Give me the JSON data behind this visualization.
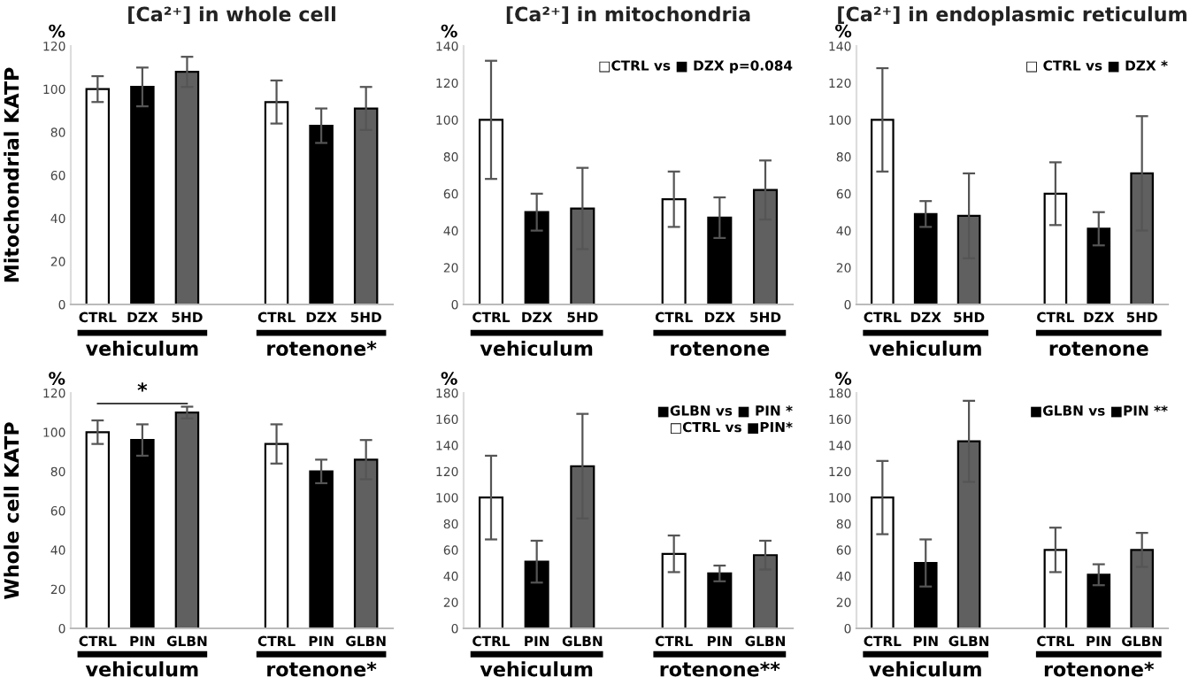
{
  "chart_data": [
    {
      "type": "bar",
      "title": "[Ca²⁺] in whole cell",
      "ylabel": "Mitochondrial KATP",
      "categories": [
        "CTRL",
        "DZX",
        "5HD",
        null,
        "CTRL",
        "DZX",
        "5HD"
      ],
      "values": [
        100,
        101,
        108,
        null,
        94,
        83,
        91
      ],
      "errors": [
        6,
        9,
        7,
        null,
        10,
        8,
        10
      ],
      "colors": [
        "#ffffff",
        "#000000",
        "#606060",
        null,
        "#ffffff",
        "#000000",
        "#606060"
      ],
      "ylim": [
        0,
        120
      ],
      "yticks": [
        0,
        20,
        40,
        60,
        80,
        100,
        120
      ],
      "annotations": [
        "%",
        "vehiculum",
        "rotenone*"
      ]
    },
    {
      "type": "bar",
      "title": "[Ca²⁺] in mitochondria",
      "categories": [
        "CTRL",
        "DZX",
        "5HD",
        null,
        "CTRL",
        "DZX",
        "5HD"
      ],
      "values": [
        100,
        50,
        52,
        null,
        57,
        47,
        62
      ],
      "errors": [
        32,
        10,
        22,
        null,
        15,
        11,
        16
      ],
      "colors": [
        "#ffffff",
        "#000000",
        "#606060",
        null,
        "#ffffff",
        "#000000",
        "#606060"
      ],
      "ylim": [
        0,
        140
      ],
      "yticks": [
        0,
        20,
        40,
        60,
        80,
        100,
        120,
        140
      ],
      "annotations": [
        "%",
        "vehiculum",
        "rotenone",
        "□CTRL vs ■ DZX p=0.084"
      ]
    },
    {
      "type": "bar",
      "title": "[Ca²⁺] in endoplasmic reticulum",
      "categories": [
        "CTRL",
        "DZX",
        "5HD",
        null,
        "CTRL",
        "DZX",
        "5HD"
      ],
      "values": [
        100,
        49,
        48,
        null,
        60,
        41,
        71
      ],
      "errors": [
        28,
        7,
        23,
        null,
        17,
        9,
        31
      ],
      "colors": [
        "#ffffff",
        "#000000",
        "#606060",
        null,
        "#ffffff",
        "#000000",
        "#606060"
      ],
      "ylim": [
        0,
        140
      ],
      "yticks": [
        0,
        20,
        40,
        60,
        80,
        100,
        120,
        140
      ],
      "annotations": [
        "%",
        "vehiculum",
        "rotenone",
        "□ CTRL vs ■ DZX *"
      ]
    },
    {
      "type": "bar",
      "ylabel": "Whole cell KATP",
      "categories": [
        "CTRL",
        "PIN",
        "GLBN",
        null,
        "CTRL",
        "PIN",
        "GLBN"
      ],
      "values": [
        100,
        96,
        110,
        null,
        94,
        80,
        86
      ],
      "errors": [
        6,
        8,
        3,
        null,
        10,
        6,
        10
      ],
      "colors": [
        "#ffffff",
        "#000000",
        "#606060",
        null,
        "#ffffff",
        "#000000",
        "#606060"
      ],
      "ylim": [
        0,
        120
      ],
      "yticks": [
        0,
        20,
        40,
        60,
        80,
        100,
        120
      ],
      "annotations": [
        "%",
        "vehiculum",
        "rotenone*",
        "*"
      ]
    },
    {
      "type": "bar",
      "categories": [
        "CTRL",
        "PIN",
        "GLBN",
        null,
        "CTRL",
        "PIN",
        "GLBN"
      ],
      "values": [
        100,
        51,
        124,
        null,
        57,
        42,
        56
      ],
      "errors": [
        32,
        16,
        40,
        null,
        14,
        6,
        11
      ],
      "colors": [
        "#ffffff",
        "#000000",
        "#606060",
        null,
        "#ffffff",
        "#000000",
        "#606060"
      ],
      "ylim": [
        0,
        180
      ],
      "yticks": [
        0,
        20,
        40,
        60,
        80,
        100,
        120,
        140,
        160,
        180
      ],
      "annotations": [
        "%",
        "vehiculum",
        "rotenone**",
        "■GLBN vs ■ PIN *",
        "□CTRL vs ■PIN*"
      ]
    },
    {
      "type": "bar",
      "categories": [
        "CTRL",
        "PIN",
        "GLBN",
        null,
        "CTRL",
        "PIN",
        "GLBN"
      ],
      "values": [
        100,
        50,
        143,
        null,
        60,
        41,
        60
      ],
      "errors": [
        28,
        18,
        31,
        null,
        17,
        8,
        13
      ],
      "colors": [
        "#ffffff",
        "#000000",
        "#606060",
        null,
        "#ffffff",
        "#000000",
        "#606060"
      ],
      "ylim": [
        0,
        180
      ],
      "yticks": [
        0,
        20,
        40,
        60,
        80,
        100,
        120,
        140,
        160,
        180
      ],
      "annotations": [
        "%",
        "vehiculum",
        "rotenone*",
        "■GLBN vs ■PIN **"
      ]
    }
  ]
}
